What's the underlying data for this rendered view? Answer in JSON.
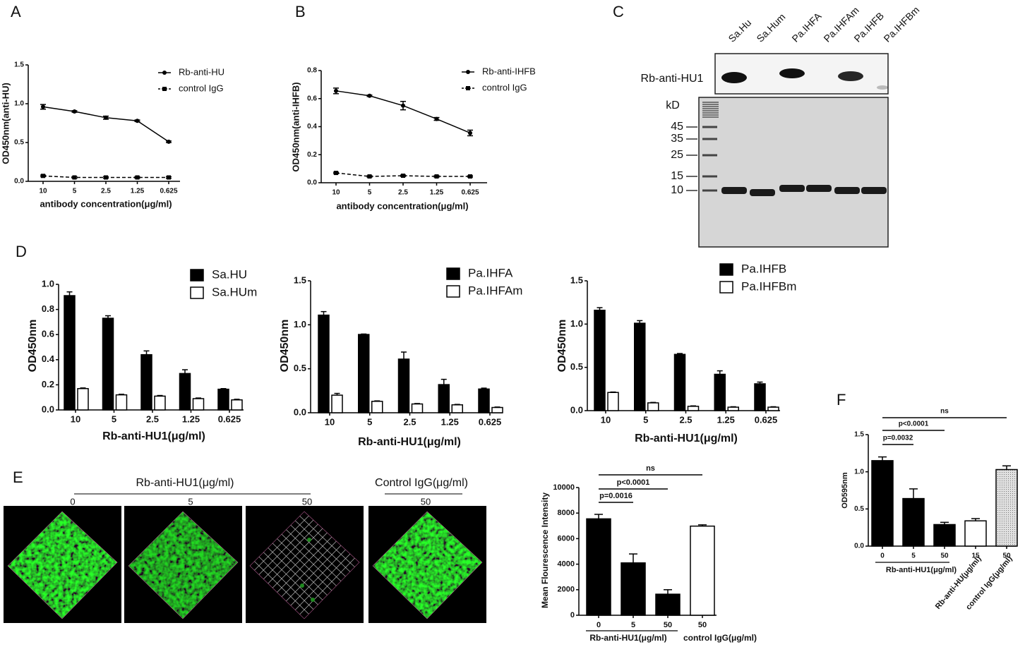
{
  "panels": [
    "A",
    "B",
    "C",
    "D",
    "E",
    "F"
  ],
  "chart_data": [
    {
      "type": "line",
      "ylabel": "OD450nm(anti-HU)",
      "xlabel": "antibody concentration(μg/ml)",
      "categories": [
        "10",
        "5",
        "2.5",
        "1.25",
        "0.625"
      ],
      "series": [
        {
          "name": "Rb-anti-HU",
          "color": "#000000",
          "marker": "circle",
          "dashed": false,
          "values": [
            0.96,
            0.9,
            0.82,
            0.78,
            0.51
          ],
          "errors": [
            0.03,
            0.01,
            0.02,
            0.01,
            0.01
          ]
        },
        {
          "name": "control IgG",
          "color": "#000000",
          "marker": "square",
          "dashed": true,
          "values": [
            0.07,
            0.05,
            0.05,
            0.05,
            0.05
          ],
          "errors": [
            0.01,
            0.01,
            0.01,
            0.01,
            0.01
          ]
        }
      ],
      "ylim": [
        0,
        1.5
      ],
      "yticks": [
        {
          "value": 0,
          "label": "0.0"
        },
        0.5,
        {
          "value": 1,
          "label": "1.0"
        },
        1.5
      ]
    },
    {
      "type": "line",
      "ylabel": "OD450nm(anti-IHFB)",
      "xlabel": "antibody concentration(μg/ml)",
      "categories": [
        "10",
        "5",
        "2.5",
        "1.25",
        "0.625"
      ],
      "series": [
        {
          "name": "Rb-anti-IHFB",
          "color": "#000000",
          "marker": "circle",
          "dashed": false,
          "values": [
            0.655,
            0.62,
            0.55,
            0.455,
            0.355
          ],
          "errors": [
            0.02,
            0.005,
            0.03,
            0.01,
            0.02
          ]
        },
        {
          "name": "control IgG",
          "color": "#000000",
          "marker": "square",
          "dashed": true,
          "values": [
            0.07,
            0.045,
            0.05,
            0.045,
            0.045
          ],
          "errors": [
            0.005,
            0.005,
            0.005,
            0.005,
            0.005
          ]
        }
      ],
      "ylim": [
        0,
        0.8
      ],
      "yticks": [
        {
          "value": 0,
          "label": "0.0"
        },
        0.2,
        0.4,
        0.6,
        0.8
      ]
    },
    {
      "type": "grouped_bar",
      "ylabel": "OD450nm",
      "xlabel": "Rb-anti-HU1(μg/ml)",
      "categories": [
        "10",
        "5",
        "2.5",
        "1.25",
        "0.625"
      ],
      "series": [
        {
          "name": "Sa.HU",
          "color": "#000000",
          "values": [
            0.91,
            0.73,
            0.44,
            0.29,
            0.165
          ],
          "errors": [
            0.03,
            0.02,
            0.03,
            0.03,
            0.005
          ]
        },
        {
          "name": "Sa.HUm",
          "color": "#ffffff",
          "values": [
            0.17,
            0.12,
            0.11,
            0.09,
            0.08
          ],
          "errors": [
            0.005,
            0.005,
            0.005,
            0.005,
            0.005
          ]
        }
      ],
      "ylim": [
        0,
        1.0
      ],
      "yticks": [
        {
          "value": 0,
          "label": "0.0"
        },
        0.2,
        0.4,
        0.6,
        0.8,
        {
          "value": 1,
          "label": "1.0"
        }
      ]
    },
    {
      "type": "grouped_bar",
      "ylabel": "OD450nm",
      "xlabel": "Rb-anti-HU1(μg/ml)",
      "categories": [
        "10",
        "5",
        "2.5",
        "1.25",
        "0.625"
      ],
      "series": [
        {
          "name": "Pa.IHFA",
          "color": "#000000",
          "values": [
            1.11,
            0.89,
            0.61,
            0.32,
            0.27
          ],
          "errors": [
            0.04,
            0.005,
            0.08,
            0.06,
            0.01
          ]
        },
        {
          "name": "Pa.IHFAm",
          "color": "#ffffff",
          "values": [
            0.2,
            0.13,
            0.1,
            0.09,
            0.06
          ],
          "errors": [
            0.02,
            0.005,
            0.005,
            0.005,
            0.005
          ]
        }
      ],
      "ylim": [
        0,
        1.5
      ],
      "yticks": [
        {
          "value": 0,
          "label": "0.0"
        },
        0.5,
        {
          "value": 1,
          "label": "1.0"
        },
        1.5
      ]
    },
    {
      "type": "grouped_bar",
      "ylabel": "OD450nm",
      "xlabel": "Rb-anti-HU1(μg/ml)",
      "categories": [
        "10",
        "5",
        "2.5",
        "1.25",
        "0.625"
      ],
      "series": [
        {
          "name": "Pa.IHFB",
          "color": "#000000",
          "values": [
            1.16,
            1.01,
            0.65,
            0.42,
            0.31
          ],
          "errors": [
            0.03,
            0.03,
            0.01,
            0.04,
            0.02
          ]
        },
        {
          "name": "Pa.IHFBm",
          "color": "#ffffff",
          "values": [
            0.21,
            0.09,
            0.05,
            0.04,
            0.04
          ],
          "errors": [
            0.005,
            0.005,
            0.005,
            0.005,
            0.005
          ]
        }
      ],
      "ylim": [
        0,
        1.5
      ],
      "yticks": [
        {
          "value": 0,
          "label": "0.0"
        },
        0.5,
        {
          "value": 1,
          "label": "1.0"
        },
        1.5
      ]
    },
    {
      "type": "bar",
      "ylabel": "Mean Flourescence Intensity",
      "categories": [
        "0",
        "5",
        "50",
        "50"
      ],
      "values": [
        7550,
        4100,
        1650,
        6980
      ],
      "errors": [
        350,
        700,
        350,
        100
      ],
      "colors": [
        "#000000",
        "#000000",
        "#000000",
        "#ffffff"
      ],
      "group_labels": [
        "Rb-anti-HU1(μg/ml)",
        "control IgG(μg/ml)"
      ],
      "annotations": [
        "ns",
        "p<0.0001",
        "p=0.0016"
      ],
      "ylim": [
        0,
        10000
      ],
      "yticks": [
        0,
        2000,
        4000,
        6000,
        8000,
        10000
      ]
    },
    {
      "type": "bar",
      "ylabel": "OD595nm",
      "categories": [
        "0",
        "5",
        "50",
        "15",
        "50"
      ],
      "values": [
        1.15,
        0.64,
        0.29,
        0.34,
        1.03
      ],
      "errors": [
        0.05,
        0.13,
        0.03,
        0.03,
        0.05
      ],
      "colors": [
        "#000000",
        "#000000",
        "#000000",
        "#ffffff",
        "#c8c8c8"
      ],
      "group_labels": [
        "Rb-anti-HU1(μg/ml)",
        "Rb-anti-HU(μg/ml)",
        "control IgG(μg/ml)"
      ],
      "annotations": [
        "ns",
        "p<0.0001",
        "p=0.0032"
      ],
      "ylim": [
        0,
        1.5
      ],
      "yticks": [
        {
          "value": 0,
          "label": "0.0"
        },
        0.5,
        {
          "value": 1,
          "label": "1.0"
        },
        1.5
      ]
    }
  ],
  "gel": {
    "lanes": [
      "Sa.Hu",
      "Sa.Hum",
      "Pa.IHFA",
      "Pa.IHFAm",
      "Pa.IHFB",
      "Pa.IHFBm"
    ],
    "antibody": "Rb-anti-HU1",
    "unit": "kD",
    "markers": [
      45,
      35,
      25,
      15,
      10
    ]
  },
  "micrographs": {
    "group_labels": [
      "Rb-anti-HU1(μg/ml)",
      "Control IgG(μg/ml)"
    ],
    "doses": [
      "0",
      "5",
      "50",
      "50"
    ]
  }
}
